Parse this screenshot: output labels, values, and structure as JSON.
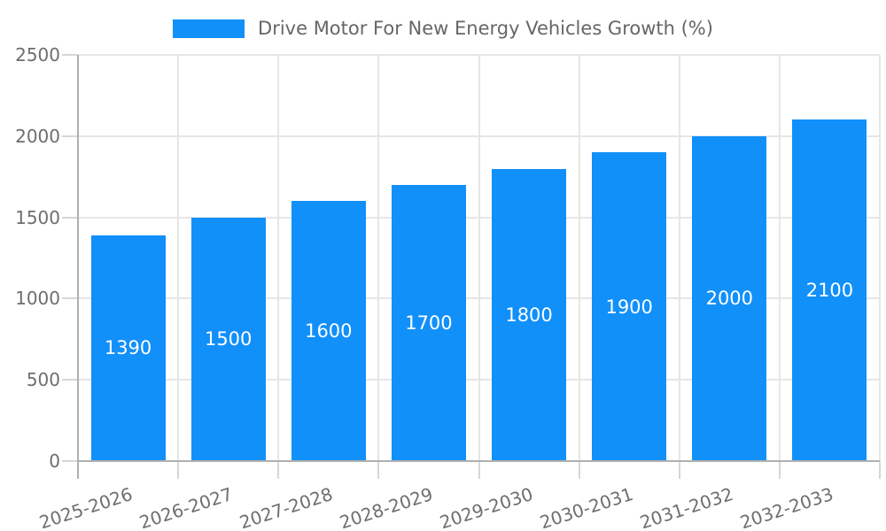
{
  "chart_data": {
    "type": "bar",
    "title": "Drive Motor For New Energy Vehicles Growth (%)",
    "legend_entries": [
      "Drive Motor For New Energy Vehicles Growth (%)"
    ],
    "legend_position": "top-center",
    "categories": [
      "2025-2026",
      "2026-2027",
      "2027-2028",
      "2028-2029",
      "2029-2030",
      "2030-2031",
      "2031-2032",
      "2032-2033"
    ],
    "values": [
      1390,
      1500,
      1600,
      1700,
      1800,
      1900,
      2000,
      2100
    ],
    "bar_value_labels": [
      "1390",
      "1500",
      "1600",
      "1700",
      "1800",
      "1900",
      "2000",
      "2100"
    ],
    "xlabel": "",
    "ylabel": "",
    "ylim": [
      0,
      2500
    ],
    "yticks": [
      0,
      500,
      1000,
      1500,
      2000,
      2500
    ],
    "grid": true,
    "x_label_rotation_deg": -18,
    "colors": {
      "bar": "#1190fa",
      "value_label": "#ffffff",
      "axis_text": "#6e6e6e",
      "title_text": "#666666",
      "gridline": "#e6e6e6",
      "tick": "#d6d6d6",
      "axis_line": "#b0b0b0"
    }
  }
}
